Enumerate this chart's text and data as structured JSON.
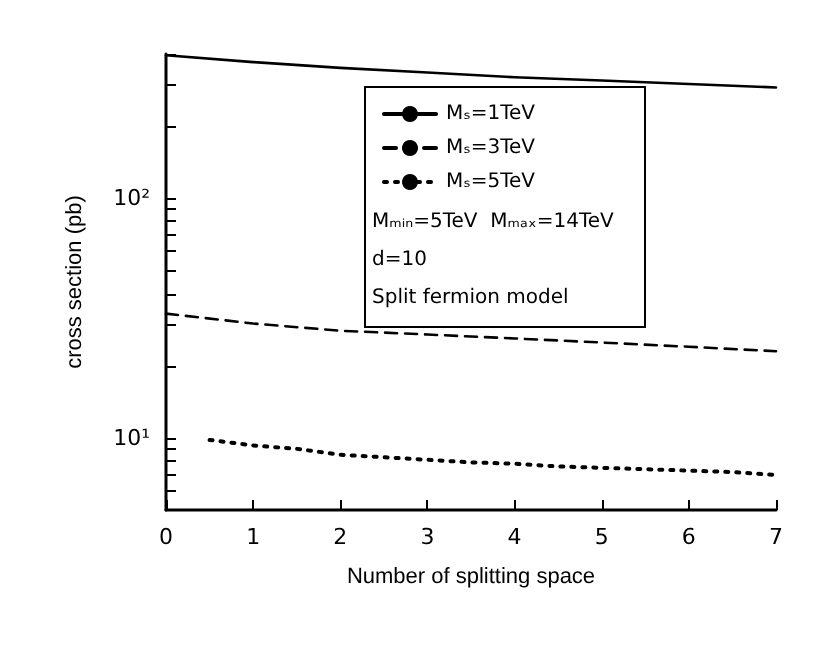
{
  "chart_data": {
    "type": "line",
    "xlabel": "Number of splitting space",
    "ylabel": "cross section (pb)",
    "log": "y",
    "xlim": [
      0,
      7
    ],
    "xticks": [
      0,
      1,
      2,
      3,
      4,
      5,
      6,
      7
    ],
    "ylim": [
      5,
      400
    ],
    "yticks": [
      {
        "value": 6,
        "label": null
      },
      {
        "value": 7,
        "label": null
      },
      {
        "value": 8,
        "label": null
      },
      {
        "value": 9,
        "label": null
      },
      {
        "value": 10,
        "label": "10¹"
      },
      {
        "value": 20,
        "label": null
      },
      {
        "value": 30,
        "label": null
      },
      {
        "value": 40,
        "label": null
      },
      {
        "value": 50,
        "label": null
      },
      {
        "value": 60,
        "label": null
      },
      {
        "value": 70,
        "label": null
      },
      {
        "value": 80,
        "label": null
      },
      {
        "value": 90,
        "label": null
      },
      {
        "value": 100,
        "label": "10²"
      },
      {
        "value": 200,
        "label": null
      },
      {
        "value": 300,
        "label": null
      },
      {
        "value": 400,
        "label": null
      }
    ],
    "grid": false,
    "legend": "top right",
    "marker": "none",
    "series": [
      {
        "name": "Mₛ=1TeV",
        "color": "#000000",
        "line_style": "solid",
        "x": [
          0,
          1,
          2,
          3,
          4,
          5,
          6,
          7
        ],
        "values": [
          395,
          370,
          350,
          335,
          320,
          310,
          300,
          290
        ]
      },
      {
        "name": "Mₛ=3TeV",
        "color": "#000000",
        "line_style": "dashed",
        "x": [
          0,
          1,
          2,
          3,
          4,
          5,
          6,
          7
        ],
        "values": [
          33,
          30,
          28,
          27,
          26,
          25,
          24,
          23
        ]
      },
      {
        "name": "Mₛ=5TeV",
        "color": "#000000",
        "line_style": "dotted",
        "x": [
          0.5,
          1,
          1.5,
          2,
          2.5,
          3,
          3.5,
          4,
          4.5,
          5,
          5.5,
          6,
          6.5,
          7
        ],
        "values": [
          9.8,
          9.3,
          9.0,
          8.5,
          8.3,
          8.1,
          7.9,
          7.8,
          7.6,
          7.5,
          7.4,
          7.3,
          7.2,
          7.0
        ]
      }
    ],
    "annotations": [
      "Mₘᵢₙ=5TeV  Mₘₐₓ=14TeV",
      "d=10",
      "Split fermion model"
    ]
  }
}
